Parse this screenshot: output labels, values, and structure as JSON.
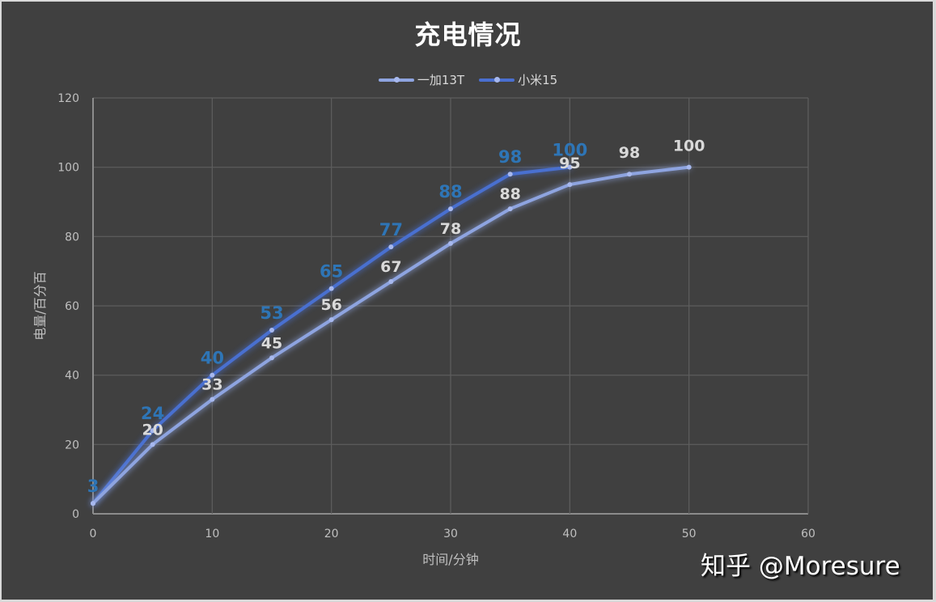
{
  "title": "充电情况",
  "legend": [
    {
      "label": "一加13T",
      "color": "#8ea4e0"
    },
    {
      "label": "小米15",
      "color": "#4a6fd0"
    }
  ],
  "axes": {
    "x_title": "时间/分钟",
    "y_title": "电量/百分百",
    "x_ticks": [
      "0",
      "10",
      "20",
      "30",
      "40",
      "50",
      "60"
    ],
    "y_ticks": [
      "0",
      "20",
      "40",
      "60",
      "80",
      "100",
      "120"
    ]
  },
  "watermark": "知乎 @Moresure",
  "chart_data": {
    "type": "line",
    "title": "充电情况",
    "xlabel": "时间/分钟",
    "ylabel": "电量/百分百",
    "xlim": [
      0,
      60
    ],
    "ylim": [
      0,
      120
    ],
    "x_ticks": [
      0,
      10,
      20,
      30,
      40,
      50,
      60
    ],
    "y_ticks": [
      0,
      20,
      40,
      60,
      80,
      100,
      120
    ],
    "grid": true,
    "legend_position": "top",
    "series": [
      {
        "name": "一加13T",
        "color": "#8ea4e0",
        "label_color": "#d9d9d9",
        "x": [
          0,
          5,
          10,
          15,
          20,
          25,
          30,
          35,
          40,
          45,
          50
        ],
        "values": [
          3,
          20,
          33,
          45,
          56,
          67,
          78,
          88,
          95,
          98,
          100
        ]
      },
      {
        "name": "小米15",
        "color": "#4a6fd0",
        "label_color": "#2e75b6",
        "x": [
          0,
          5,
          10,
          15,
          20,
          25,
          30,
          35,
          40
        ],
        "values": [
          3,
          24,
          40,
          53,
          65,
          77,
          88,
          98,
          100
        ]
      }
    ]
  }
}
